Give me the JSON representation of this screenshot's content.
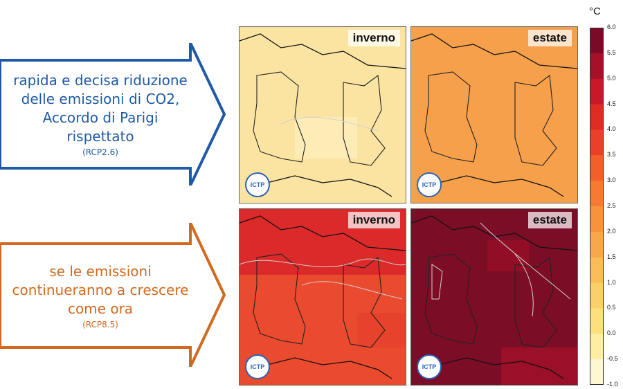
{
  "arrows": [
    {
      "id": "rcp26",
      "lines": [
        "rapida e decisa riduzione",
        "delle emissioni di CO2,",
        "Accordo di Parigi rispettato"
      ],
      "sub": "(RCP2.6)",
      "color": "#1f5aa6"
    },
    {
      "id": "rcp85",
      "lines": [
        "se le emissioni",
        "continueranno a crescere",
        "come ora"
      ],
      "sub": "(RCP8.5)",
      "color": "#d2691e"
    }
  ],
  "panels": [
    {
      "id": "rcp26-winter",
      "season": "inverno",
      "fill": "#fbe4a2"
    },
    {
      "id": "rcp26-summer",
      "season": "estate",
      "fill": "#f6a04c"
    },
    {
      "id": "rcp85-winter",
      "season": "inverno",
      "fill": "#dc2a2a"
    },
    {
      "id": "rcp85-summer",
      "season": "estate",
      "fill": "#7c0d27"
    }
  ],
  "logo_label": "ICTP",
  "colorbar": {
    "unit": "°C",
    "ticks": [
      "6.0",
      "5.5",
      "5.0",
      "4.5",
      "4.0",
      "3.5",
      "3.0",
      "2.5",
      "2.0",
      "1.5",
      "1.0",
      "0.5",
      "0.0",
      "-0.5",
      "-1.0"
    ],
    "colors": [
      "#7a0b26",
      "#a51128",
      "#c9172a",
      "#e02b22",
      "#ec3f27",
      "#f25f2b",
      "#f57b32",
      "#f7933b",
      "#f8a848",
      "#f9bc56",
      "#fbcf69",
      "#fde07e",
      "#fdeea3",
      "#fef7d2"
    ]
  }
}
